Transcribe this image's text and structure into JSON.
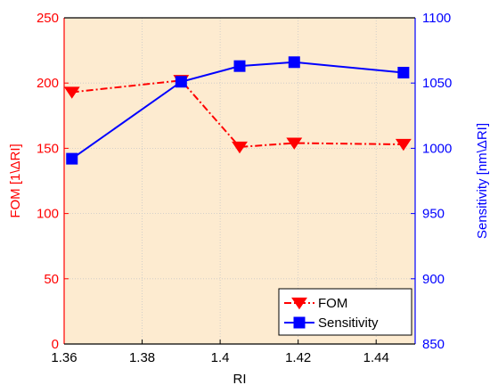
{
  "colors": {
    "fom": "#ff0000",
    "sensitivity": "#0000ff",
    "plot_background": "#fdebd0",
    "grid": "#c8c8c8",
    "axis": "#000000"
  },
  "chart_data": {
    "type": "line",
    "title": "",
    "xlabel": "RI",
    "ylabel_left": "FOM [1\\ΔRI]",
    "ylabel_right": "Sensitivity [nm\\ΔRI]",
    "xlim": [
      1.36,
      1.45
    ],
    "ylim_left": [
      0,
      250
    ],
    "ylim_right": [
      850,
      1100
    ],
    "x_ticks": [
      "1.36",
      "1.38",
      "1.4",
      "1.42",
      "1.44"
    ],
    "y_ticks_left": [
      "0",
      "50",
      "100",
      "150",
      "200",
      "250"
    ],
    "y_ticks_right": [
      "850",
      "900",
      "950",
      "1000",
      "1050",
      "1100"
    ],
    "grid": true,
    "legend_position": "bottom-right",
    "series": [
      {
        "name": "FOM",
        "axis": "left",
        "color": "#ff0000",
        "line_style": "dash-dot",
        "marker": "triangle-down",
        "x": [
          1.362,
          1.39,
          1.405,
          1.419,
          1.447
        ],
        "y": [
          193,
          202,
          151,
          154,
          153
        ]
      },
      {
        "name": "Sensitivity",
        "axis": "right",
        "color": "#0000ff",
        "line_style": "solid",
        "marker": "square",
        "x": [
          1.362,
          1.39,
          1.405,
          1.419,
          1.447
        ],
        "y": [
          992,
          1051,
          1063,
          1066,
          1058
        ]
      }
    ]
  }
}
